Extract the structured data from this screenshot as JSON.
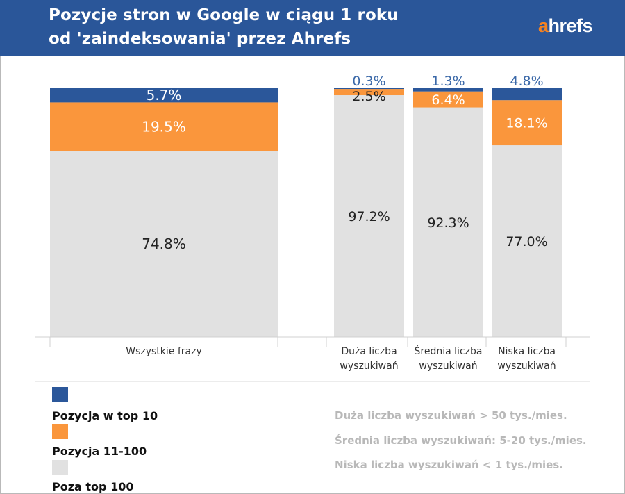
{
  "header": {
    "title_line1": "Pozycje stron w Google w ciągu 1 roku",
    "title_line2": "od 'zaindeksowania' przez Ahrefs",
    "logo": "ahrefs"
  },
  "colors": {
    "header_bg": "#2a5699",
    "top10": "#2b579a",
    "pos11_100": "#fa963c",
    "beyond100": "#e1e1e1",
    "label_light": "#ffffff",
    "label_dark": "#222222",
    "label_blue": "#3a68a8"
  },
  "chart_data": {
    "type": "bar",
    "stacked": true,
    "normalized_percent": true,
    "categories": [
      "Wszystkie frazy",
      "Duża liczba wyszukiwań",
      "Średnia liczba wyszukiwań",
      "Niska liczba wyszukiwań"
    ],
    "category_labels": [
      [
        "Wszystkie frazy"
      ],
      [
        "Duża liczba",
        "wyszukiwań"
      ],
      [
        "Średnia liczba",
        "wyszukiwań"
      ],
      [
        "Niska liczba",
        "wyszukiwań"
      ]
    ],
    "series": [
      {
        "name": "Poza top 100",
        "values": [
          74.8,
          97.2,
          92.3,
          77.0
        ],
        "labels": [
          "74.8%",
          "97.2%",
          "92.3%",
          "77.0%"
        ]
      },
      {
        "name": "Pozycja 11-100",
        "values": [
          19.5,
          2.5,
          6.4,
          18.1
        ],
        "labels": [
          "19.5%",
          "2.5%",
          "6.4%",
          "18.1%"
        ]
      },
      {
        "name": "Pozycja w top 10",
        "values": [
          5.7,
          0.3,
          1.3,
          4.8
        ],
        "labels": [
          "5.7%",
          "0.3%",
          "1.3%",
          "4.8%"
        ]
      }
    ],
    "ylim": [
      0,
      100
    ],
    "grid": false,
    "legend_position": "bottom-left"
  },
  "legend": [
    {
      "label": "Pozycja w top 10"
    },
    {
      "label": "Pozycja 11-100"
    },
    {
      "label": "Poza top 100"
    }
  ],
  "notes": [
    "Duża liczba wyszukiwań > 50 tys./mies.",
    "Średnia liczba wyszukiwań: 5-20 tys./mies.",
    "Niska liczba wyszukiwań < 1 tys./mies."
  ]
}
